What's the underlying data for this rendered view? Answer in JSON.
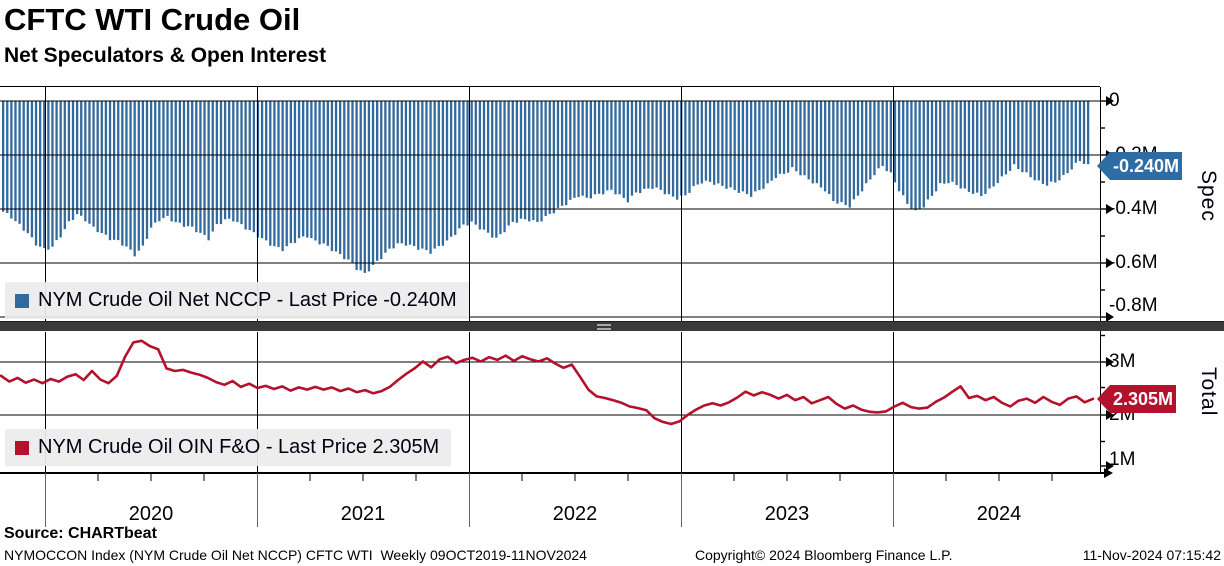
{
  "header": {
    "title": "CFTC WTI Crude Oil",
    "subtitle": "Net Speculators & Open Interest"
  },
  "panels": {
    "spec": {
      "legend": "NYM Crude Oil Net NCCP - Last Price -0.240M",
      "badge": "-0.240M",
      "axis_label": "Spec",
      "y_ticks": [
        "0",
        "-0.2M",
        "-0.4M",
        "-0.6M",
        "-0.8M"
      ],
      "color": "#336a9d",
      "badge_color": "#2e6da4"
    },
    "total": {
      "legend": "NYM Crude Oil OIN F&O - Last Price 2.305M",
      "badge": "2.305M",
      "axis_label": "Total",
      "y_ticks": [
        "3M",
        "2M",
        "1M"
      ],
      "color": "#b4122c",
      "badge_color": "#b4122c"
    }
  },
  "x_axis": {
    "years": [
      "2020",
      "2021",
      "2022",
      "2023",
      "2024"
    ]
  },
  "footer": {
    "source": "Source: CHARTbeat",
    "description": "NYMOCCON Index (NYM Crude Oil Net NCCP) CFTC WTI  Weekly 09OCT2019-11NOV2024",
    "copyright": "Copyright© 2024 Bloomberg Finance L.P.",
    "timestamp": "11-Nov-2024 07:15:42"
  },
  "chart_data": [
    {
      "type": "bar",
      "name": "NYM Crude Oil Net NCCP",
      "unit": "M contracts (net speculator position)",
      "x_range": [
        "09OCT2019",
        "11NOV2024"
      ],
      "frequency": "weekly (values below sampled ~biweekly from chart)",
      "last_price": -0.24,
      "ylim": [
        -0.87,
        0.05
      ],
      "y_ticks": [
        0,
        -0.2,
        -0.4,
        -0.6,
        -0.8
      ],
      "legend_position": "bottom-left",
      "grid": true,
      "values": [
        -0.41,
        -0.43,
        -0.46,
        -0.49,
        -0.53,
        -0.55,
        -0.54,
        -0.5,
        -0.45,
        -0.42,
        -0.44,
        -0.47,
        -0.49,
        -0.51,
        -0.52,
        -0.54,
        -0.57,
        -0.54,
        -0.47,
        -0.44,
        -0.43,
        -0.45,
        -0.46,
        -0.47,
        -0.49,
        -0.51,
        -0.46,
        -0.44,
        -0.44,
        -0.46,
        -0.48,
        -0.5,
        -0.52,
        -0.54,
        -0.55,
        -0.53,
        -0.51,
        -0.5,
        -0.52,
        -0.53,
        -0.55,
        -0.57,
        -0.59,
        -0.62,
        -0.64,
        -0.61,
        -0.58,
        -0.55,
        -0.53,
        -0.53,
        -0.54,
        -0.55,
        -0.56,
        -0.54,
        -0.52,
        -0.49,
        -0.46,
        -0.45,
        -0.47,
        -0.49,
        -0.51,
        -0.48,
        -0.45,
        -0.44,
        -0.44,
        -0.45,
        -0.43,
        -0.41,
        -0.39,
        -0.37,
        -0.35,
        -0.36,
        -0.35,
        -0.34,
        -0.33,
        -0.35,
        -0.37,
        -0.34,
        -0.33,
        -0.32,
        -0.33,
        -0.35,
        -0.36,
        -0.35,
        -0.32,
        -0.3,
        -0.3,
        -0.31,
        -0.32,
        -0.33,
        -0.34,
        -0.35,
        -0.33,
        -0.31,
        -0.28,
        -0.27,
        -0.25,
        -0.27,
        -0.29,
        -0.31,
        -0.33,
        -0.37,
        -0.38,
        -0.39,
        -0.35,
        -0.31,
        -0.27,
        -0.24,
        -0.27,
        -0.33,
        -0.38,
        -0.41,
        -0.39,
        -0.35,
        -0.31,
        -0.3,
        -0.31,
        -0.33,
        -0.34,
        -0.35,
        -0.33,
        -0.3,
        -0.27,
        -0.24,
        -0.26,
        -0.28,
        -0.3,
        -0.31,
        -0.3,
        -0.28,
        -0.25,
        -0.22,
        -0.24
      ]
    },
    {
      "type": "line",
      "name": "NYM Crude Oil OIN F&O",
      "unit": "M contracts (total open interest)",
      "x_range": [
        "09OCT2019",
        "11NOV2024"
      ],
      "frequency": "weekly (values below sampled ~biweekly from chart)",
      "last_price": 2.305,
      "ylim": [
        0.9,
        3.57
      ],
      "y_ticks": [
        3,
        2,
        1
      ],
      "legend_position": "bottom-left",
      "grid": true,
      "values": [
        2.74,
        2.63,
        2.7,
        2.61,
        2.67,
        2.6,
        2.68,
        2.63,
        2.72,
        2.77,
        2.66,
        2.83,
        2.67,
        2.6,
        2.74,
        3.1,
        3.37,
        3.4,
        3.3,
        3.24,
        2.88,
        2.83,
        2.85,
        2.8,
        2.76,
        2.7,
        2.62,
        2.57,
        2.64,
        2.53,
        2.59,
        2.51,
        2.55,
        2.49,
        2.54,
        2.46,
        2.52,
        2.48,
        2.53,
        2.48,
        2.52,
        2.45,
        2.5,
        2.43,
        2.47,
        2.41,
        2.45,
        2.53,
        2.66,
        2.78,
        2.88,
        3.01,
        2.9,
        3.05,
        3.1,
        2.98,
        3.04,
        3.08,
        3.01,
        3.09,
        3.04,
        3.12,
        3.02,
        3.11,
        3.05,
        3.01,
        3.07,
        2.97,
        2.89,
        2.95,
        2.72,
        2.48,
        2.35,
        2.32,
        2.28,
        2.23,
        2.16,
        2.13,
        2.09,
        1.94,
        1.87,
        1.83,
        1.88,
        2.0,
        2.1,
        2.18,
        2.22,
        2.18,
        2.24,
        2.33,
        2.44,
        2.37,
        2.43,
        2.38,
        2.31,
        2.38,
        2.28,
        2.34,
        2.22,
        2.28,
        2.34,
        2.21,
        2.12,
        2.18,
        2.1,
        2.06,
        2.05,
        2.07,
        2.16,
        2.23,
        2.15,
        2.12,
        2.14,
        2.25,
        2.33,
        2.44,
        2.54,
        2.32,
        2.36,
        2.28,
        2.34,
        2.23,
        2.16,
        2.27,
        2.31,
        2.23,
        2.34,
        2.25,
        2.19,
        2.31,
        2.35,
        2.24,
        2.305
      ]
    }
  ]
}
